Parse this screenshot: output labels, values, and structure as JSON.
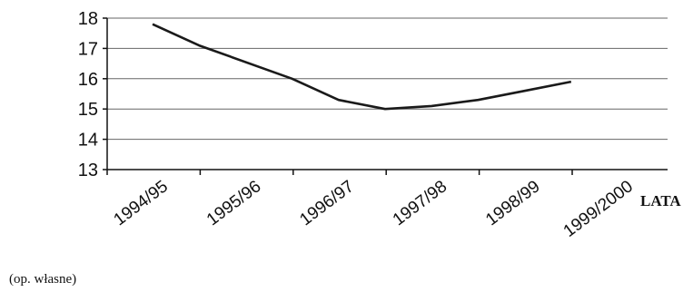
{
  "chart_data": {
    "type": "line",
    "categories": [
      "1994/95",
      "1995/96",
      "1996/97",
      "1997/98",
      "1998/99",
      "1999/2000"
    ],
    "series": [
      {
        "values": [
          17.8,
          17.1,
          16.0,
          15.3,
          15.0,
          15.1,
          15.3,
          15.6,
          15.9
        ]
      }
    ],
    "x": [
      0,
      0.5,
      1.5,
      2.0,
      2.5,
      3.0,
      3.5,
      4.0,
      4.5
    ],
    "xlabel": "LATA",
    "ylabel": "",
    "ylim": [
      13,
      18
    ],
    "yticks": [
      "13",
      "14",
      "15",
      "16",
      "17",
      "18"
    ],
    "grid": true,
    "line_color": "#1a1a1a"
  },
  "source_note": "(op. własne)"
}
